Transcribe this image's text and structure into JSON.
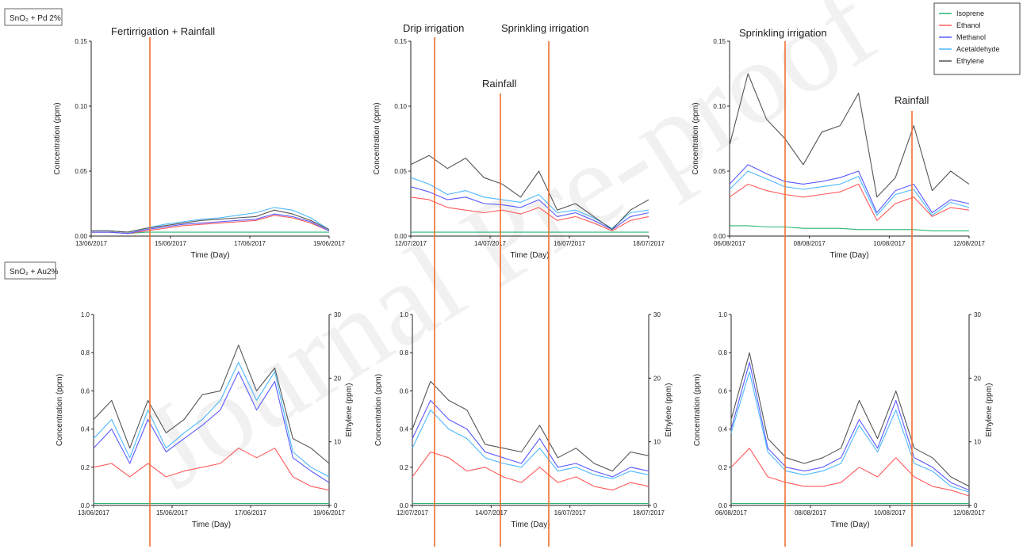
{
  "colors": {
    "Isoprene": "#2bb673",
    "Ethanol": "#ff5a5a",
    "Methanol": "#5a5aff",
    "Acetaldehyde": "#4db8ff",
    "Ethylene": "#555555",
    "event_line": "#f07030"
  },
  "row_labels": {
    "top": "SnO₂ + Pd 2%",
    "bottom": "SnO₂ + Au2%"
  },
  "legend": [
    "Isoprene",
    "Ethanol",
    "Methanol",
    "Acetaldehyde",
    "Ethylene"
  ],
  "watermark": "Journal Pre-proof",
  "events": {
    "fert": "Fertirrigation + Rainfall",
    "drip": "Drip irrigation",
    "sprink_p2": "Sprinkling irrigation",
    "rain_p2": "Rainfall",
    "sprink_p3": "Sprinkling irrigation",
    "rain_p3": "Rainfall"
  },
  "chart_data": [
    {
      "type": "line",
      "row": "top",
      "x_ticks": [
        "13/06/2017",
        "15/06/2017",
        "17/06/2017",
        "19/06/2017"
      ],
      "xlabel": "Time (Day)",
      "ylabel": "Concentration (ppm)",
      "ylim": [
        0,
        0.15
      ],
      "y_ticks": [
        "0.00",
        "0.05",
        "0.10",
        "0.15"
      ],
      "series": [
        {
          "name": "Isoprene",
          "values": [
            0.003,
            0.003,
            0.002,
            0.003,
            0.003,
            0.003,
            0.003,
            0.003,
            0.003,
            0.003,
            0.003,
            0.003,
            0.003,
            0.003
          ]
        },
        {
          "name": "Ethanol",
          "values": [
            0.003,
            0.003,
            0.002,
            0.004,
            0.006,
            0.008,
            0.009,
            0.01,
            0.011,
            0.012,
            0.016,
            0.014,
            0.01,
            0.004
          ]
        },
        {
          "name": "Methanol",
          "values": [
            0.003,
            0.003,
            0.002,
            0.005,
            0.007,
            0.009,
            0.01,
            0.011,
            0.012,
            0.013,
            0.017,
            0.015,
            0.011,
            0.004
          ]
        },
        {
          "name": "Acetaldehyde",
          "values": [
            0.004,
            0.004,
            0.003,
            0.006,
            0.009,
            0.011,
            0.013,
            0.014,
            0.016,
            0.018,
            0.022,
            0.02,
            0.014,
            0.005
          ]
        },
        {
          "name": "Ethylene",
          "values": [
            0.004,
            0.004,
            0.003,
            0.006,
            0.008,
            0.01,
            0.012,
            0.013,
            0.014,
            0.015,
            0.02,
            0.017,
            0.012,
            0.005
          ]
        }
      ]
    },
    {
      "type": "line",
      "row": "top",
      "x_ticks": [
        "12/07/2017",
        "14/07/2017",
        "16/07/2017",
        "18/07/2017"
      ],
      "xlabel": "Time (Day)",
      "ylabel": "Concentration (ppm)",
      "ylim": [
        0,
        0.15
      ],
      "y_ticks": [
        "0.00",
        "0.05",
        "0.10",
        "0.15"
      ],
      "series": [
        {
          "name": "Isoprene",
          "values": [
            0.003,
            0.003,
            0.003,
            0.003,
            0.003,
            0.003,
            0.003,
            0.003,
            0.003,
            0.003,
            0.003,
            0.003,
            0.003,
            0.003
          ]
        },
        {
          "name": "Ethanol",
          "values": [
            0.03,
            0.028,
            0.022,
            0.02,
            0.018,
            0.02,
            0.017,
            0.022,
            0.012,
            0.015,
            0.01,
            0.004,
            0.012,
            0.015
          ]
        },
        {
          "name": "Methanol",
          "values": [
            0.038,
            0.034,
            0.028,
            0.03,
            0.025,
            0.024,
            0.022,
            0.028,
            0.015,
            0.018,
            0.012,
            0.005,
            0.015,
            0.018
          ]
        },
        {
          "name": "Acetaldehyde",
          "values": [
            0.045,
            0.04,
            0.032,
            0.035,
            0.03,
            0.028,
            0.026,
            0.032,
            0.018,
            0.02,
            0.014,
            0.006,
            0.018,
            0.02
          ]
        },
        {
          "name": "Ethylene",
          "values": [
            0.055,
            0.062,
            0.052,
            0.06,
            0.045,
            0.04,
            0.03,
            0.05,
            0.02,
            0.025,
            0.015,
            0.005,
            0.02,
            0.028
          ]
        }
      ]
    },
    {
      "type": "line",
      "row": "top",
      "x_ticks": [
        "06/08/2017",
        "08/08/2017",
        "10/08/2017",
        "12/08/2017"
      ],
      "xlabel": "Time (Day)",
      "ylabel": "Concentration (ppm)",
      "ylim": [
        0,
        0.15
      ],
      "y_ticks": [
        "0.00",
        "0.05",
        "0.10",
        "0.15"
      ],
      "series": [
        {
          "name": "Isoprene",
          "values": [
            0.008,
            0.008,
            0.007,
            0.007,
            0.006,
            0.006,
            0.006,
            0.005,
            0.005,
            0.005,
            0.005,
            0.004,
            0.004,
            0.004
          ]
        },
        {
          "name": "Ethanol",
          "values": [
            0.03,
            0.04,
            0.035,
            0.032,
            0.03,
            0.032,
            0.034,
            0.04,
            0.012,
            0.025,
            0.03,
            0.015,
            0.022,
            0.02
          ]
        },
        {
          "name": "Methanol",
          "values": [
            0.04,
            0.055,
            0.048,
            0.042,
            0.04,
            0.042,
            0.045,
            0.05,
            0.018,
            0.035,
            0.04,
            0.018,
            0.028,
            0.025
          ]
        },
        {
          "name": "Acetaldehyde",
          "values": [
            0.036,
            0.05,
            0.044,
            0.038,
            0.036,
            0.038,
            0.04,
            0.046,
            0.016,
            0.032,
            0.036,
            0.016,
            0.026,
            0.022
          ]
        },
        {
          "name": "Ethylene",
          "values": [
            0.07,
            0.125,
            0.09,
            0.075,
            0.055,
            0.08,
            0.085,
            0.11,
            0.03,
            0.045,
            0.085,
            0.035,
            0.05,
            0.04
          ]
        }
      ]
    },
    {
      "type": "line",
      "row": "bottom",
      "x_ticks": [
        "13/06/2017",
        "15/06/2017",
        "17/06/2017",
        "19/06/2017"
      ],
      "xlabel": "Time (Day)",
      "ylabel": "Concentration (ppm)",
      "ylabel_right": "Ethylene (ppm)",
      "ylim": [
        0,
        1.0
      ],
      "ylim_right": [
        0,
        30
      ],
      "y_ticks": [
        "0.0",
        "0.2",
        "0.4",
        "0.6",
        "0.8",
        "1.0"
      ],
      "y_ticks_right": [
        "0",
        "10",
        "20",
        "30"
      ],
      "series": [
        {
          "name": "Isoprene",
          "values": [
            0.01,
            0.01,
            0.01,
            0.01,
            0.01,
            0.01,
            0.01,
            0.01,
            0.01,
            0.01,
            0.01,
            0.01,
            0.01,
            0.01
          ]
        },
        {
          "name": "Ethanol",
          "values": [
            0.2,
            0.22,
            0.15,
            0.22,
            0.15,
            0.18,
            0.2,
            0.22,
            0.3,
            0.25,
            0.3,
            0.15,
            0.1,
            0.08
          ]
        },
        {
          "name": "Methanol",
          "values": [
            0.3,
            0.4,
            0.22,
            0.45,
            0.28,
            0.35,
            0.42,
            0.5,
            0.7,
            0.5,
            0.65,
            0.25,
            0.18,
            0.12
          ]
        },
        {
          "name": "Acetaldehyde",
          "values": [
            0.35,
            0.45,
            0.25,
            0.5,
            0.3,
            0.38,
            0.45,
            0.55,
            0.75,
            0.55,
            0.7,
            0.28,
            0.2,
            0.15
          ]
        },
        {
          "name": "Ethylene",
          "values": [
            0.45,
            0.55,
            0.3,
            0.55,
            0.38,
            0.45,
            0.58,
            0.6,
            0.84,
            0.6,
            0.72,
            0.35,
            0.3,
            0.22
          ]
        }
      ]
    },
    {
      "type": "line",
      "row": "bottom",
      "x_ticks": [
        "12/07/2017",
        "14/07/2017",
        "16/07/2017",
        "18/07/2017"
      ],
      "xlabel": "Time (Day)",
      "ylabel": "Concentration (ppm)",
      "ylabel_right": "Ethylene (ppm)",
      "ylim": [
        0,
        1.0
      ],
      "ylim_right": [
        0,
        30
      ],
      "y_ticks": [
        "0.0",
        "0.2",
        "0.4",
        "0.6",
        "0.8",
        "1.0"
      ],
      "y_ticks_right": [
        "0",
        "10",
        "20",
        "30"
      ],
      "series": [
        {
          "name": "Isoprene",
          "values": [
            0.01,
            0.01,
            0.01,
            0.01,
            0.01,
            0.01,
            0.01,
            0.01,
            0.01,
            0.01,
            0.01,
            0.01,
            0.01,
            0.01
          ]
        },
        {
          "name": "Ethanol",
          "values": [
            0.15,
            0.28,
            0.25,
            0.18,
            0.2,
            0.15,
            0.12,
            0.2,
            0.12,
            0.15,
            0.1,
            0.08,
            0.12,
            0.1
          ]
        },
        {
          "name": "Methanol",
          "values": [
            0.35,
            0.55,
            0.45,
            0.4,
            0.28,
            0.25,
            0.22,
            0.35,
            0.2,
            0.22,
            0.18,
            0.15,
            0.2,
            0.18
          ]
        },
        {
          "name": "Acetaldehyde",
          "values": [
            0.3,
            0.5,
            0.4,
            0.35,
            0.25,
            0.22,
            0.2,
            0.3,
            0.18,
            0.2,
            0.16,
            0.14,
            0.18,
            0.16
          ]
        },
        {
          "name": "Ethylene",
          "values": [
            0.4,
            0.65,
            0.55,
            0.5,
            0.32,
            0.3,
            0.28,
            0.42,
            0.25,
            0.3,
            0.22,
            0.18,
            0.28,
            0.26
          ]
        }
      ]
    },
    {
      "type": "line",
      "row": "bottom",
      "x_ticks": [
        "06/08/2017",
        "08/08/2017",
        "10/08/2017",
        "12/08/2017"
      ],
      "xlabel": "Time (Day)",
      "ylabel": "Concentration (ppm)",
      "ylabel_right": "Ethylene (ppm)",
      "ylim": [
        0,
        1.0
      ],
      "ylim_right": [
        0,
        30
      ],
      "y_ticks": [
        "0.0",
        "0.2",
        "0.4",
        "0.6",
        "0.8",
        "1.0"
      ],
      "y_ticks_right": [
        "0",
        "10",
        "20",
        "30"
      ],
      "series": [
        {
          "name": "Isoprene",
          "values": [
            0.01,
            0.01,
            0.01,
            0.01,
            0.01,
            0.01,
            0.01,
            0.01,
            0.01,
            0.01,
            0.01,
            0.01,
            0.01,
            0.01
          ]
        },
        {
          "name": "Ethanol",
          "values": [
            0.2,
            0.3,
            0.15,
            0.12,
            0.1,
            0.1,
            0.12,
            0.2,
            0.15,
            0.25,
            0.15,
            0.1,
            0.08,
            0.05
          ]
        },
        {
          "name": "Methanol",
          "values": [
            0.4,
            0.75,
            0.3,
            0.2,
            0.18,
            0.2,
            0.25,
            0.45,
            0.3,
            0.55,
            0.25,
            0.2,
            0.12,
            0.08
          ]
        },
        {
          "name": "Acetaldehyde",
          "values": [
            0.38,
            0.7,
            0.28,
            0.18,
            0.16,
            0.18,
            0.22,
            0.42,
            0.28,
            0.5,
            0.22,
            0.18,
            0.1,
            0.07
          ]
        },
        {
          "name": "Ethylene",
          "values": [
            0.45,
            0.8,
            0.35,
            0.25,
            0.22,
            0.25,
            0.3,
            0.55,
            0.35,
            0.6,
            0.3,
            0.25,
            0.15,
            0.1
          ]
        }
      ]
    }
  ]
}
